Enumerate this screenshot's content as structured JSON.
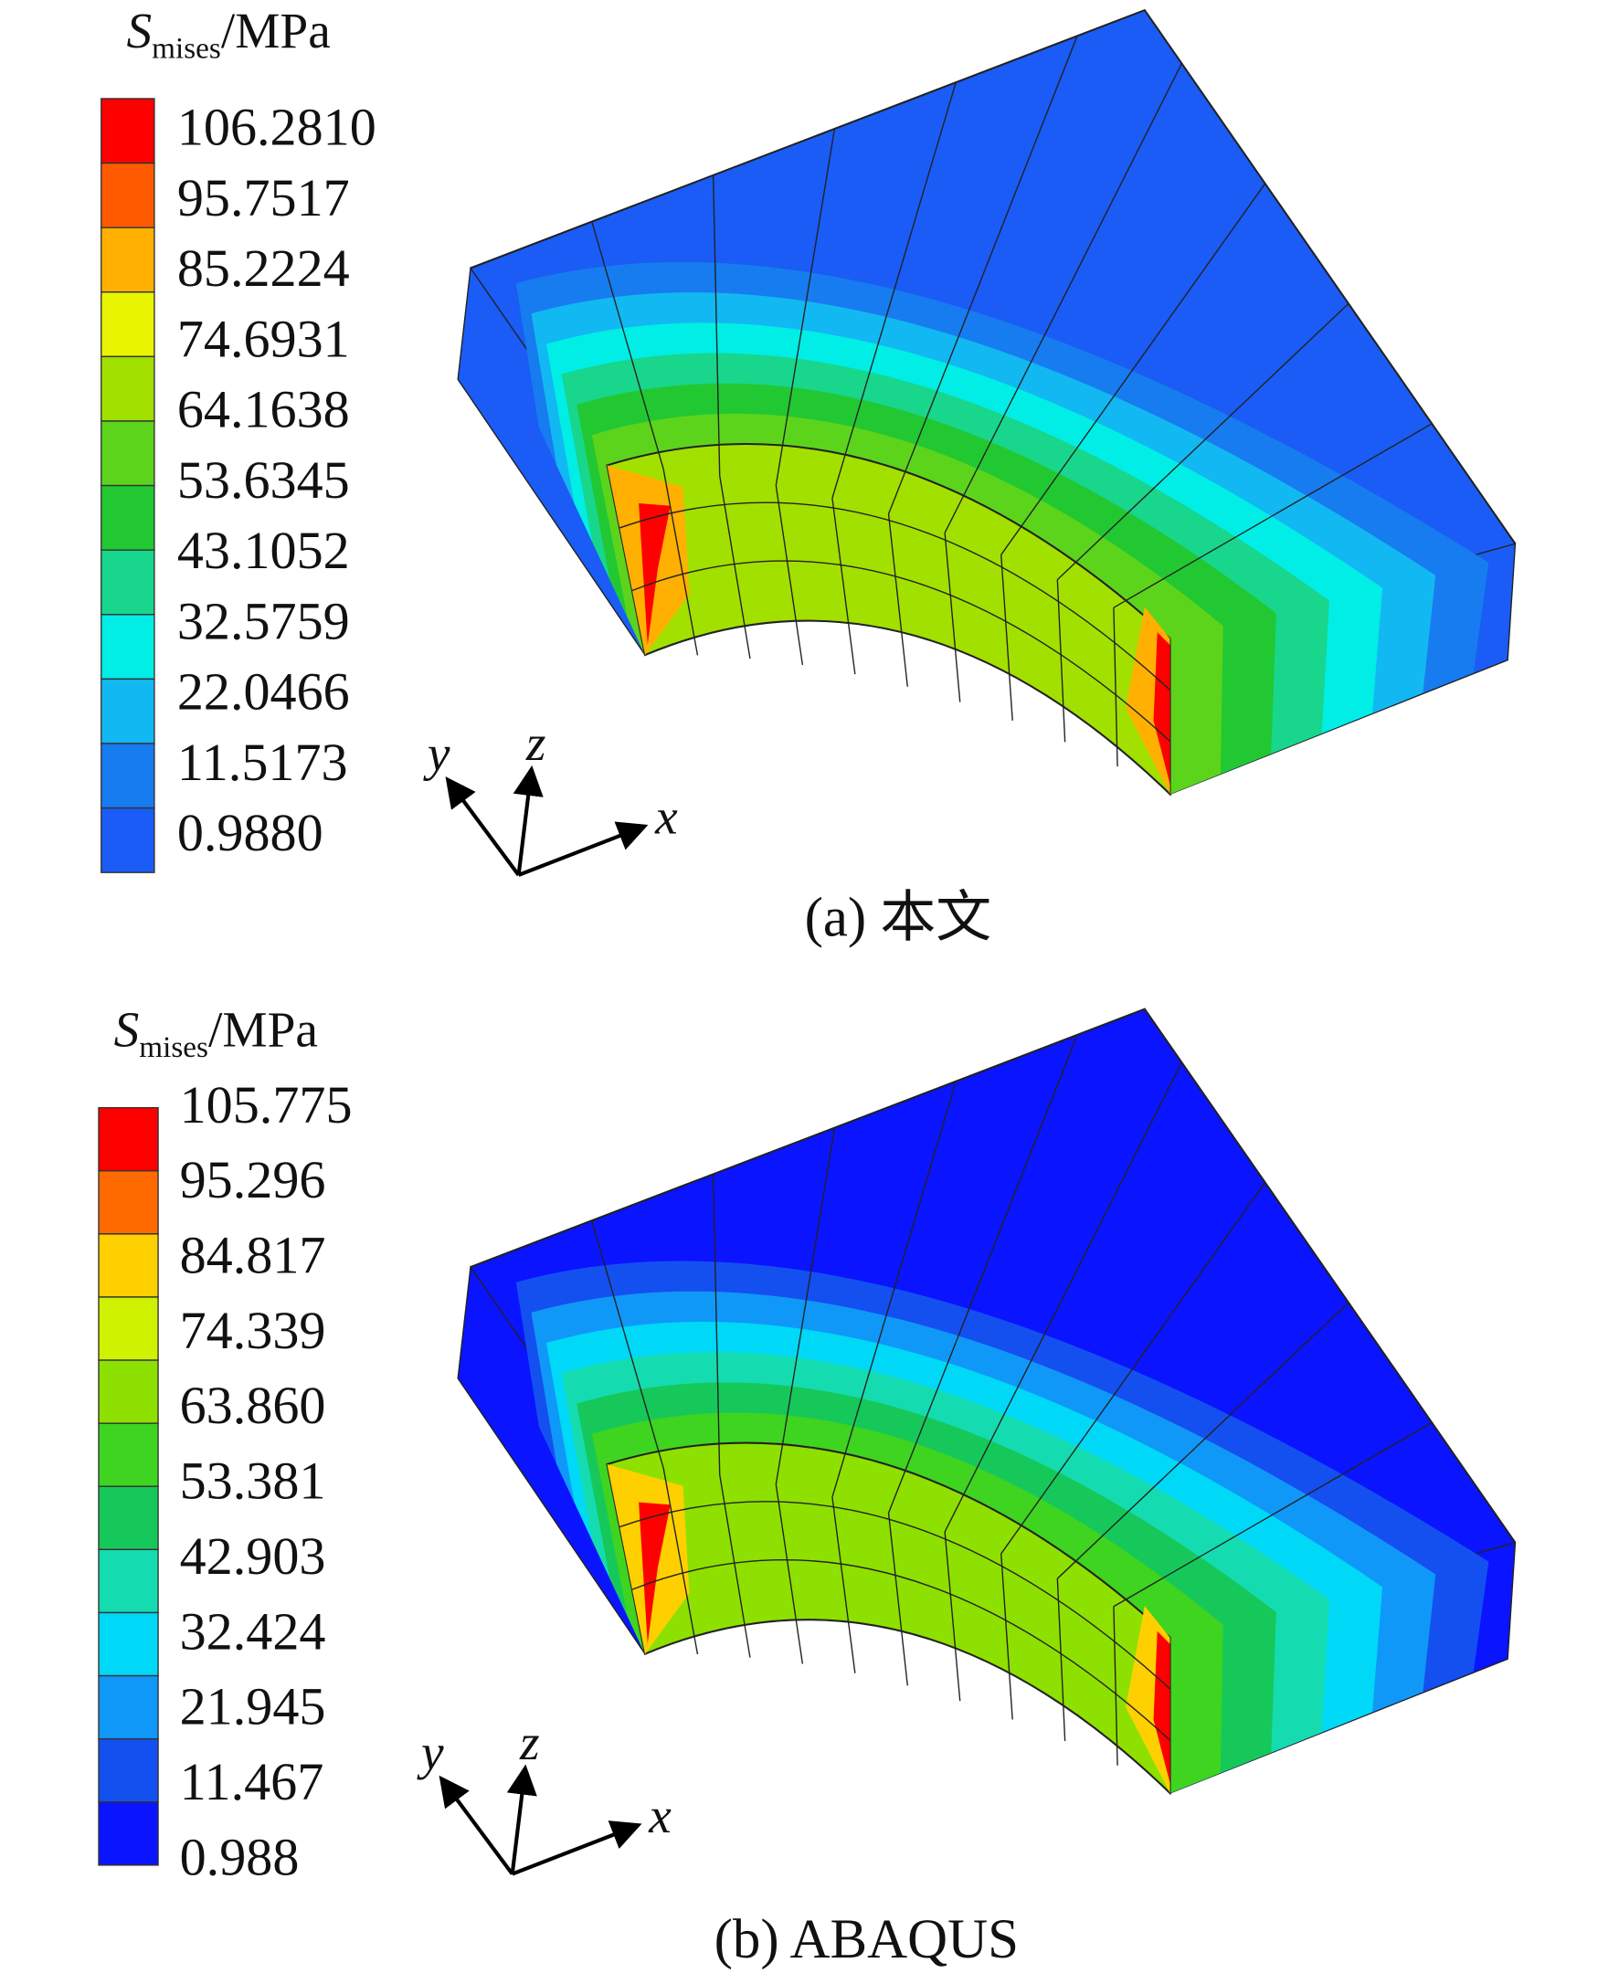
{
  "panels": [
    {
      "title": {
        "symbol": "S",
        "subscript": "mises",
        "unit": "/MPa"
      },
      "legend": {
        "labels": [
          "106.2810",
          "95.7517",
          "85.2224",
          "74.6931",
          "64.1638",
          "53.6345",
          "43.1052",
          "32.5759",
          "22.0466",
          "11.5173",
          "0.9880"
        ]
      },
      "axes": {
        "x": "x",
        "y": "y",
        "z": "z"
      },
      "caption": "(a) 本文"
    },
    {
      "title": {
        "symbol": "S",
        "subscript": "mises",
        "unit": "/MPa"
      },
      "legend": {
        "labels": [
          "105.775",
          "95.296",
          "84.817",
          "74.339",
          "63.860",
          "53.381",
          "42.903",
          "32.424",
          "21.945",
          "11.467",
          "0.988"
        ]
      },
      "axes": {
        "x": "x",
        "y": "y",
        "z": "z"
      },
      "caption": "(b) ABAQUS"
    }
  ]
}
